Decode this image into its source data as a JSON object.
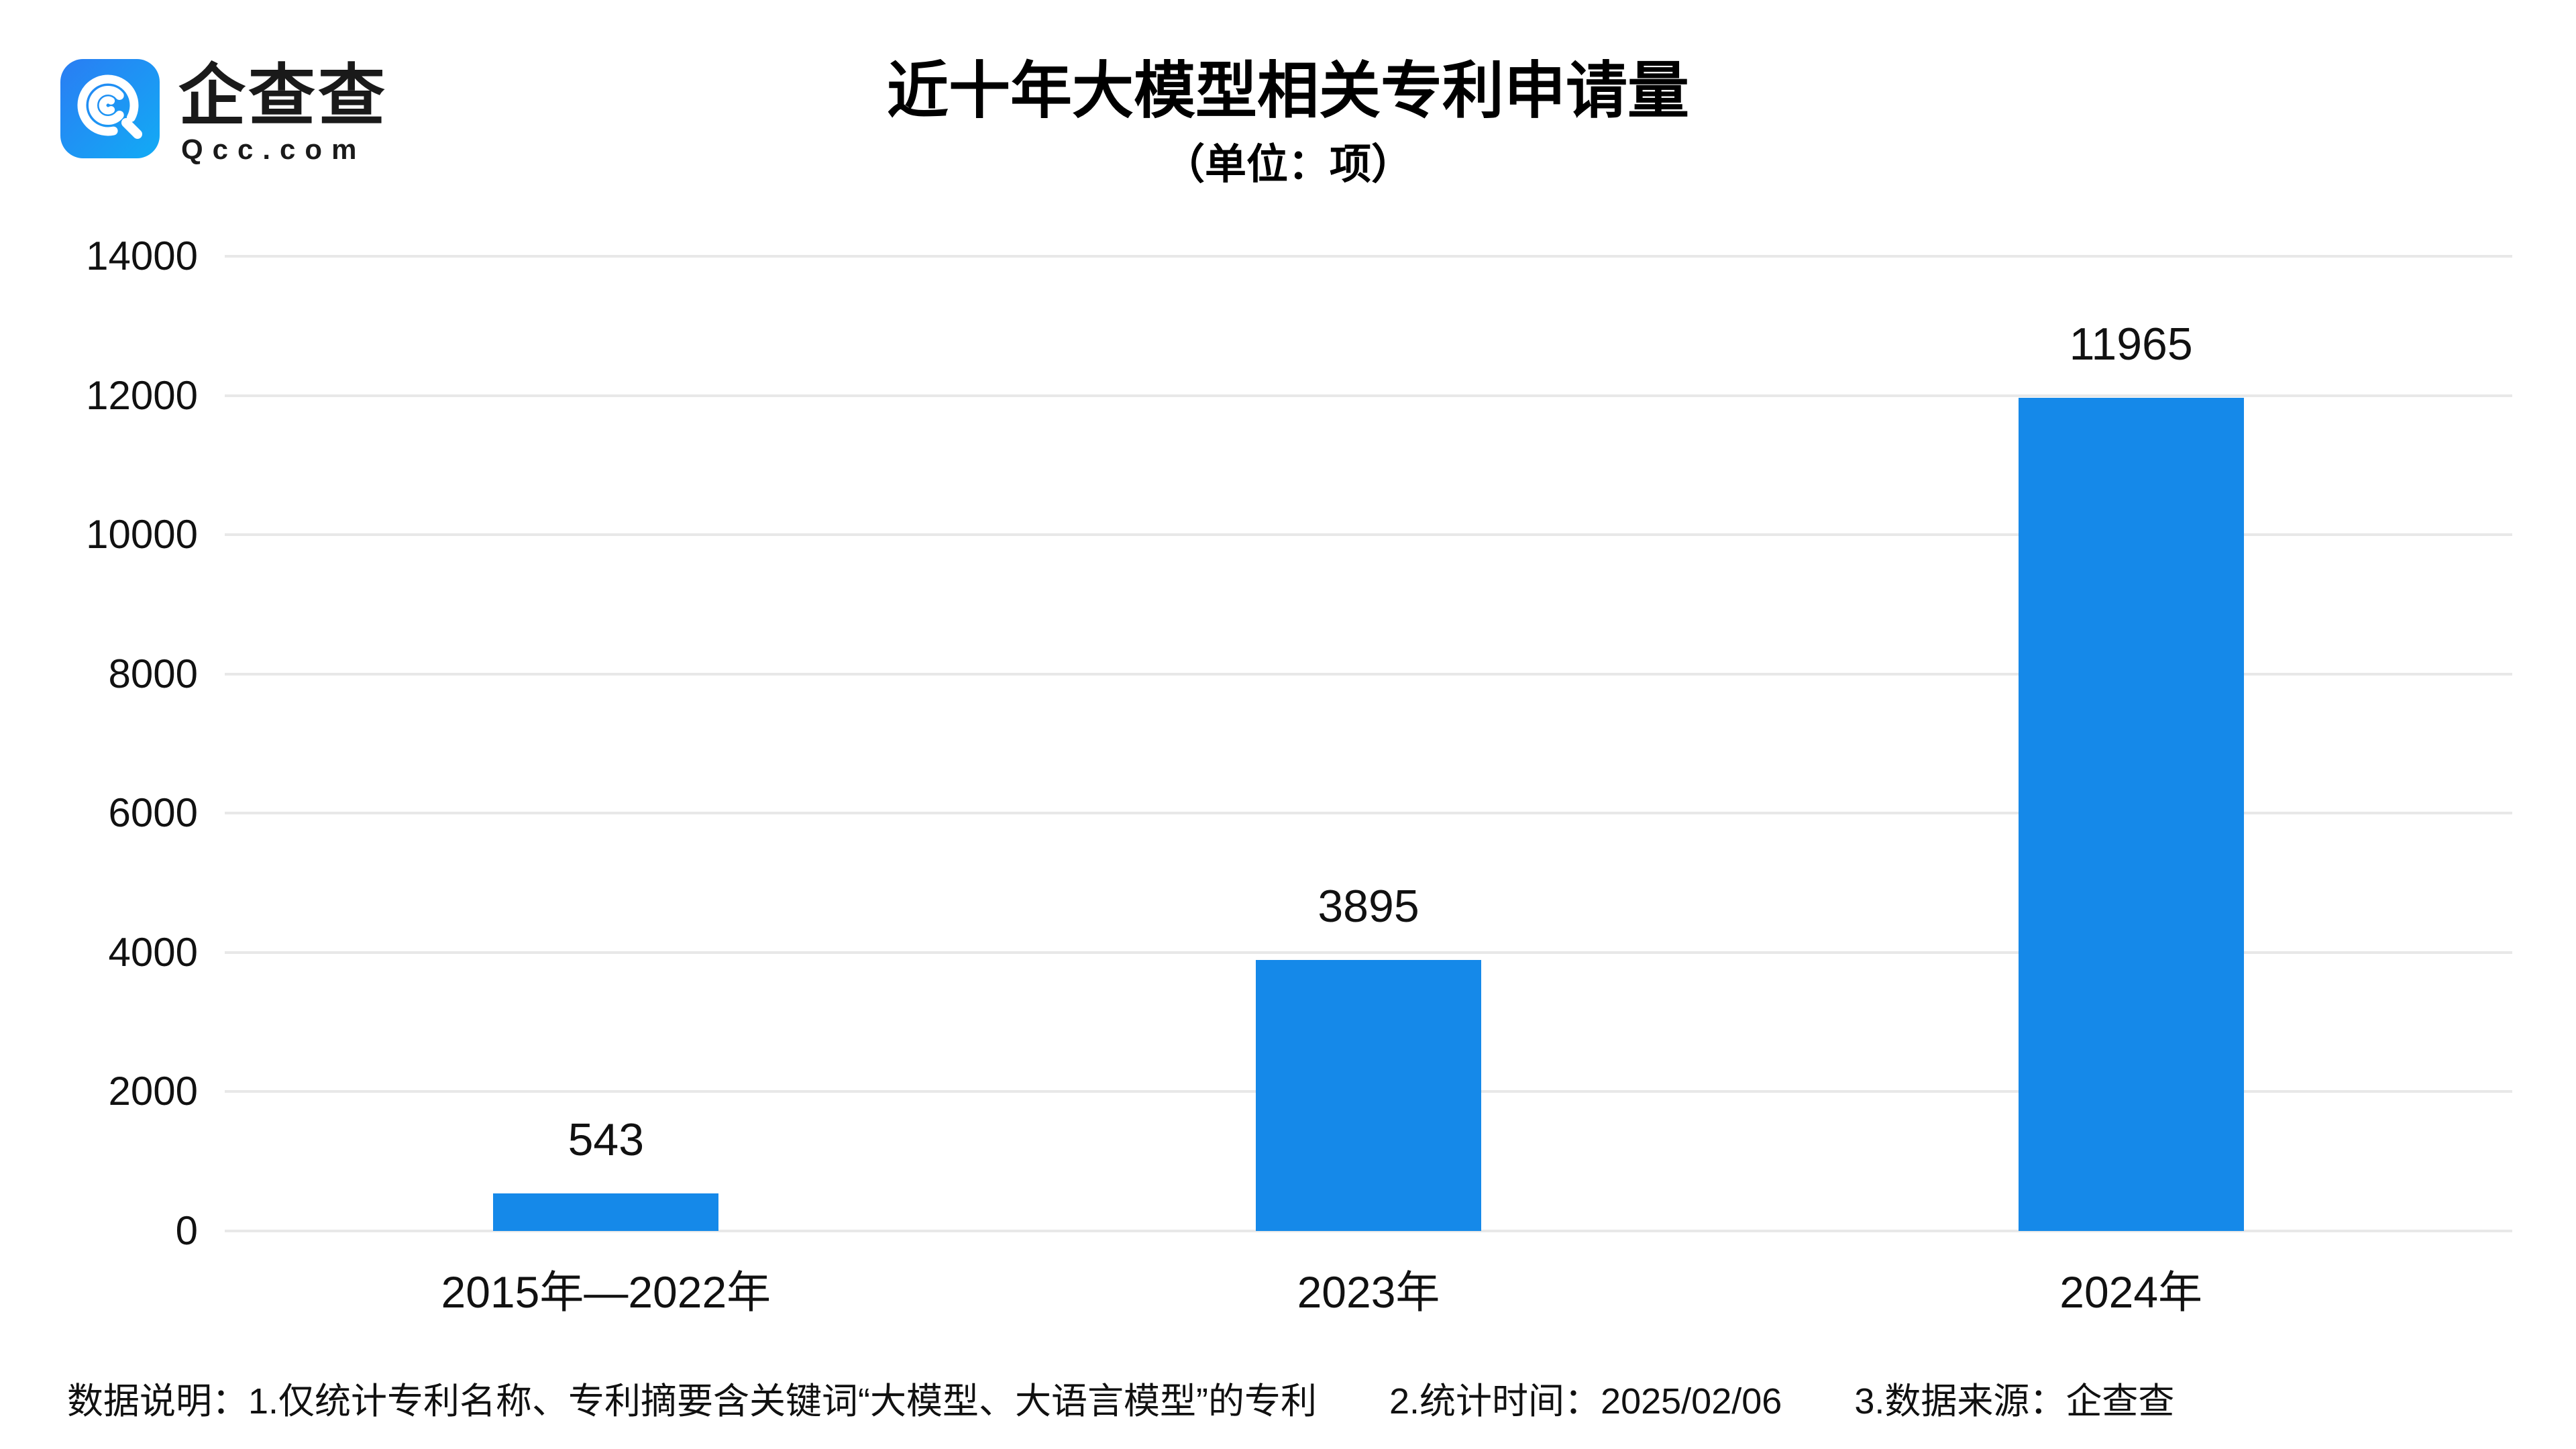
{
  "header": {
    "logo_cn": "企查查",
    "logo_domain": "Qcc.com",
    "title": "近十年大模型相关专利申请量",
    "subtitle": "（单位：项）"
  },
  "chart_data": {
    "type": "bar",
    "title": "近十年大模型相关专利申请量",
    "unit_label": "（单位：项）",
    "categories": [
      "2015年—2022年",
      "2023年",
      "2024年"
    ],
    "values": [
      543,
      3895,
      11965
    ],
    "value_labels": [
      "543",
      "3895",
      "11965"
    ],
    "xlabel": "",
    "ylabel": "",
    "ylim": [
      0,
      14000
    ],
    "yticks": [
      0,
      2000,
      4000,
      6000,
      8000,
      10000,
      12000,
      14000
    ],
    "grid": "horizontal",
    "legend": "none",
    "bar_color": "#1589e9"
  },
  "footnote": {
    "items": [
      "数据说明：1.仅统计专利名称、专利摘要含关键词“大模型、大语言模型”的专利",
      "2.统计时间：2025/02/06",
      "3.数据来源：企查查"
    ]
  },
  "colors": {
    "bar": "#1589e9",
    "gridline": "#e8e8e8",
    "text": "#111111",
    "title_text": "#000000",
    "logo_gradient_start": "#2a7df3",
    "logo_gradient_end": "#12abf5"
  }
}
